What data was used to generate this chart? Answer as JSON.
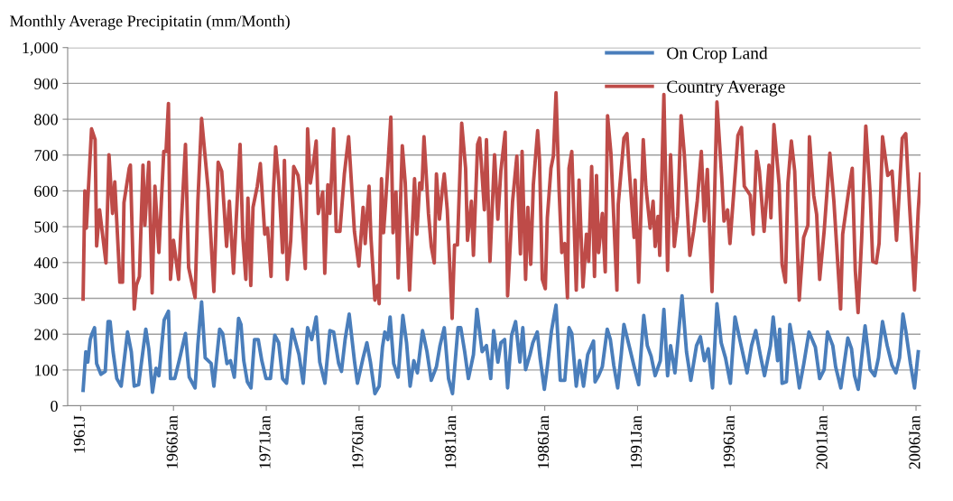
{
  "chart_data": {
    "type": "line",
    "ylabel": "Monthly Average Precipitatin (mm/Month)",
    "xlim": [
      "1960-04-20",
      "2006-04-01"
    ],
    "xticks": [
      {
        "value": "1961-01-01",
        "label": "1961J"
      },
      {
        "value": "1966-01-01",
        "label": "1966Jan"
      },
      {
        "value": "1971-01-01",
        "label": "1971Jan"
      },
      {
        "value": "1976-01-01",
        "label": "1976Jan"
      },
      {
        "value": "1981-01-01",
        "label": "1981Jan"
      },
      {
        "value": "1986-01-01",
        "label": "1986Jan"
      },
      {
        "value": "1991-01-01",
        "label": "1991Jan"
      },
      {
        "value": "1996-01-01",
        "label": "1996Jan"
      },
      {
        "value": "2001-01-01",
        "label": "2001Jan"
      },
      {
        "value": "2006-01-01",
        "label": "2006Jan"
      }
    ],
    "ylim": [
      0,
      1000
    ],
    "yticks": [
      0,
      100,
      200,
      300,
      400,
      500,
      600,
      700,
      800,
      900,
      {
        "value": 1000,
        "label": "1,000"
      }
    ],
    "grid": "y",
    "legend": "top right",
    "marker": "none",
    "line_style": "solid",
    "series": [
      {
        "name": "On Crop Land",
        "color": "#4a7ebb",
        "x": [
          "1961-02-18",
          "1961-04-12",
          "1961-05-21",
          "1961-07-08",
          "1961-08-14",
          "1961-10-01",
          "1961-11-11",
          "1962-02-03",
          "1962-04-30",
          "1962-06-24",
          "1962-08-03",
          "1962-10-01",
          "1962-12-13",
          "1963-03-09",
          "1963-07-12",
          "1963-09-24",
          "1963-11-21",
          "1964-02-14",
          "1964-07-05",
          "1964-09-02",
          "1964-11-14",
          "1965-01-23",
          "1965-03-20",
          "1965-07-01",
          "1965-09-24",
          "1965-11-03",
          "1966-01-26",
          "1966-04-23",
          "1966-08-25",
          "1966-11-07",
          "1967-03-02",
          "1967-04-26",
          "1967-07-08",
          "1967-09-17",
          "1968-01-12",
          "1968-03-06",
          "1968-06-27",
          "1968-08-25",
          "1968-11-18",
          "1969-01-26",
          "1969-04-12",
          "1969-07-05",
          "1969-08-21",
          "1969-10-15",
          "1969-12-24",
          "1970-03-06",
          "1970-05-14",
          "1970-07-26",
          "1970-10-05",
          "1970-12-27",
          "1971-03-24",
          "1971-06-17",
          "1971-09-02",
          "1971-11-18",
          "1972-02-03",
          "1972-05-25",
          "1972-10-05",
          "1972-12-27",
          "1973-03-24",
          "1973-06-13",
          "1973-09-09",
          "1973-11-18",
          "1974-02-28",
          "1974-06-06",
          "1974-08-18",
          "1974-11-25",
          "1975-01-19",
          "1975-04-01",
          "1975-06-20",
          "1975-10-01",
          "1975-11-29",
          "1976-03-20",
          "1976-06-02",
          "1976-08-11",
          "1976-11-07",
          "1977-01-30",
          "1977-04-05",
          "1977-05-21",
          "1977-07-19",
          "1977-09-02",
          "1977-11-11",
          "1978-02-07",
          "1978-05-11",
          "1978-07-23",
          "1978-10-01",
          "1978-12-13",
          "1979-02-21",
          "1979-06-02",
          "1979-08-29",
          "1979-11-21",
          "1980-03-02",
          "1980-05-11",
          "1980-08-03",
          "1980-10-26",
          "1981-01-12",
          "1981-04-30",
          "1981-06-24",
          "1981-09-09",
          "1981-11-21",
          "1982-02-28",
          "1982-05-07",
          "1982-08-18",
          "1982-11-11",
          "1983-02-03",
          "1983-04-01",
          "1983-06-24",
          "1983-08-21",
          "1983-11-03",
          "1984-01-01",
          "1984-03-20",
          "1984-06-06",
          "1984-08-29",
          "1984-10-26",
          "1984-12-20",
          "1985-03-17",
          "1985-05-11",
          "1985-08-07",
          "1985-10-01",
          "1985-12-24",
          "1986-02-21",
          "1986-05-14",
          "1986-08-11",
          "1986-11-03",
          "1987-01-30",
          "1987-04-23",
          "1987-06-17",
          "1987-09-13",
          "1987-11-18",
          "1988-02-03",
          "1988-04-26",
          "1988-08-18",
          "1988-09-17",
          "1988-11-25",
          "1989-02-07",
          "1989-05-14",
          "1989-07-15",
          "1989-09-20",
          "1989-12-06",
          "1990-02-14",
          "1990-04-08",
          "1990-08-03",
          "1990-10-26",
          "1991-01-23",
          "1991-05-03",
          "1991-07-12",
          "1991-09-24",
          "1991-12-13",
          "1992-03-24",
          "1992-06-02",
          "1992-08-14",
          "1992-10-12",
          "1993-01-05",
          "1993-05-25",
          "1993-08-21",
          "1993-11-14",
          "1994-03-06",
          "1994-05-21",
          "1994-08-07",
          "1994-10-23",
          "1995-01-15",
          "1995-04-12",
          "1995-07-05",
          "1995-09-27",
          "1996-01-01",
          "1996-04-01",
          "1996-07-05",
          "1996-11-25",
          "1997-02-21",
          "1997-05-14",
          "1997-08-11",
          "1997-11-03",
          "1998-02-28",
          "1998-04-23",
          "1998-07-19",
          "1998-08-29",
          "1998-10-15",
          "1999-01-08",
          "1999-03-17",
          "1999-05-29",
          "1999-09-20",
          "1999-12-17",
          "2000-03-27",
          "2000-07-30",
          "2000-10-23",
          "2001-01-19",
          "2001-03-27",
          "2001-07-08",
          "2001-09-02",
          "2001-12-13",
          "2002-04-30",
          "2002-07-12",
          "2002-09-09",
          "2002-11-21",
          "2003-04-05",
          "2003-07-15",
          "2003-10-12",
          "2003-12-24",
          "2004-03-13",
          "2004-06-13",
          "2004-09-17",
          "2004-12-02",
          "2005-02-11",
          "2005-04-19",
          "2005-06-13",
          "2005-09-13",
          "2005-12-02",
          "2006-02-14"
        ],
        "values": [
          43,
          151,
          122,
          185,
          202,
          218,
          118,
          88,
          96,
          235,
          235,
          151,
          76,
          55,
          206,
          151,
          55,
          59,
          214,
          159,
          38,
          105,
          84,
          239,
          264,
          76,
          76,
          126,
          202,
          80,
          50,
          172,
          290,
          134,
          118,
          55,
          214,
          202,
          118,
          126,
          80,
          244,
          227,
          126,
          67,
          50,
          185,
          185,
          126,
          76,
          76,
          197,
          176,
          76,
          63,
          214,
          143,
          63,
          218,
          185,
          248,
          122,
          63,
          210,
          206,
          118,
          96,
          185,
          256,
          126,
          63,
          134,
          176,
          122,
          34,
          55,
          164,
          206,
          185,
          248,
          118,
          80,
          252,
          176,
          55,
          126,
          92,
          210,
          151,
          71,
          109,
          168,
          218,
          76,
          34,
          218,
          218,
          151,
          76,
          143,
          269,
          151,
          168,
          76,
          210,
          122,
          176,
          185,
          50,
          197,
          235,
          122,
          218,
          101,
          143,
          176,
          206,
          134,
          46,
          109,
          210,
          281,
          71,
          71,
          218,
          202,
          55,
          126,
          55,
          143,
          181,
          67,
          84,
          109,
          214,
          185,
          113,
          50,
          143,
          227,
          159,
          109,
          59,
          252,
          168,
          139,
          84,
          126,
          269,
          84,
          168,
          92,
          307,
          151,
          71,
          168,
          193,
          126,
          159,
          50,
          285,
          176,
          134,
          63,
          248,
          185,
          92,
          168,
          210,
          143,
          84,
          168,
          248,
          126,
          214,
          63,
          67,
          227,
          168,
          50,
          118,
          206,
          164,
          76,
          101,
          206,
          168,
          109,
          50,
          189,
          159,
          84,
          46,
          223,
          101,
          84,
          134,
          235,
          168,
          113,
          92,
          134,
          256,
          210,
          118,
          50,
          151
        ]
      },
      {
        "name": "Country Average",
        "color": "#be4b48",
        "x": [
          "1961-02-18",
          "1961-03-24",
          "1961-04-23",
          "1961-08-03",
          "1961-10-12",
          "1961-11-11",
          "1962-01-08",
          "1962-05-14",
          "1962-07-12",
          "1962-09-20",
          "1962-11-03",
          "1963-02-11",
          "1963-04-05",
          "1963-05-03",
          "1963-08-14",
          "1963-09-06",
          "1963-11-21",
          "1964-01-01",
          "1964-03-02",
          "1964-05-11",
          "1964-06-17",
          "1964-09-02",
          "1964-11-07",
          "1965-01-01",
          "1965-03-20",
          "1965-06-24",
          "1965-08-07",
          "1965-09-24",
          "1965-11-03",
          "1966-01-01",
          "1966-04-12",
          "1966-05-21",
          "1966-08-25",
          "1966-10-26",
          "1967-03-02",
          "1967-04-26",
          "1967-07-08",
          "1967-11-14",
          "1968-03-06",
          "1968-05-29",
          "1968-08-07",
          "1968-11-11",
          "1969-01-05",
          "1969-03-27",
          "1969-08-03",
          "1969-09-27",
          "1969-11-25",
          "1970-01-05",
          "1970-03-02",
          "1970-04-15",
          "1970-07-08",
          "1970-09-06",
          "1970-12-02",
          "1971-01-26",
          "1971-04-05",
          "1971-05-18",
          "1971-07-05",
          "1971-09-02",
          "1971-11-18",
          "1971-12-24",
          "1972-02-18",
          "1972-04-26",
          "1972-06-24",
          "1972-09-17",
          "1972-10-26",
          "1973-02-07",
          "1973-03-24",
          "1973-05-18",
          "1973-07-08",
          "1973-09-09",
          "1973-10-19",
          "1974-01-15",
          "1974-02-25",
          "1974-04-26",
          "1974-06-06",
          "1974-08-18",
          "1974-10-08",
          "1974-12-20",
          "1975-03-17",
          "1975-06-09",
          "1975-10-01",
          "1975-12-27",
          "1976-03-20",
          "1976-04-30",
          "1976-07-15",
          "1976-08-21",
          "1976-11-07",
          "1977-01-01",
          "1977-01-30",
          "1977-03-17",
          "1977-04-26",
          "1977-06-06",
          "1977-09-17",
          "1977-10-30",
          "1977-12-27",
          "1978-02-07",
          "1978-04-30",
          "1978-06-27",
          "1978-09-20",
          "1978-12-27",
          "1979-02-11",
          "1979-04-08",
          "1979-05-21",
          "1979-07-01",
          "1979-09-27",
          "1979-11-21",
          "1980-01-19",
          "1980-03-02",
          "1980-04-30",
          "1980-06-27",
          "1980-08-03",
          "1980-10-01",
          "1981-01-05",
          "1981-02-21",
          "1981-04-19",
          "1981-07-12",
          "1981-09-27",
          "1981-11-03",
          "1982-01-19",
          "1982-02-28",
          "1982-05-21",
          "1982-07-01",
          "1982-10-01",
          "1982-11-11",
          "1983-01-19",
          "1983-04-19",
          "1983-06-24",
          "1983-08-21",
          "1983-11-14",
          "1984-01-01",
          "1984-04-08",
          "1984-07-01",
          "1984-09-09",
          "1984-10-12",
          "1984-12-20",
          "1985-02-03",
          "1985-04-01",
          "1985-05-21",
          "1985-08-14",
          "1985-09-20",
          "1985-11-14",
          "1986-01-12",
          "1986-02-21",
          "1986-05-03",
          "1986-06-20",
          "1986-08-11",
          "1986-10-08",
          "1986-12-02",
          "1987-01-30",
          "1987-03-24",
          "1987-04-23",
          "1987-06-17",
          "1987-09-13",
          "1987-11-07",
          "1988-01-23",
          "1988-04-01",
          "1988-05-14",
          "1988-07-12",
          "1988-09-06",
          "1988-10-15",
          "1988-11-25",
          "1989-02-07",
          "1989-04-05",
          "1989-05-21",
          "1989-07-26",
          "1989-11-21",
          "1989-12-17",
          "1990-04-08",
          "1990-06-06",
          "1990-07-23",
          "1990-10-26",
          "1990-11-14",
          "1991-01-23",
          "1991-04-23",
          "1991-06-13",
          "1991-09-06",
          "1991-11-03",
          "1991-12-13",
          "1992-02-07",
          "1992-03-13",
          "1992-06-02",
          "1992-08-14",
          "1992-10-12",
          "1992-12-24",
          "1993-02-28",
          "1993-05-07",
          "1993-07-08",
          "1993-10-26",
          "1994-01-08",
          "1994-03-20",
          "1994-06-09",
          "1994-08-07",
          "1994-10-05",
          "1995-01-05",
          "1995-02-14",
          "1995-04-12",
          "1995-07-15",
          "1995-08-29",
          "1995-11-07",
          "1995-12-24",
          "1996-04-15",
          "1996-05-29",
          "1996-08-07",
          "1996-10-01",
          "1997-01-26",
          "1997-03-24",
          "1997-05-29",
          "1997-07-26",
          "1997-10-26",
          "1998-01-30",
          "1998-03-09",
          "1998-05-07",
          "1998-08-18",
          "1998-10-15",
          "1998-12-20",
          "1999-02-07",
          "1999-04-15",
          "1999-06-20",
          "1999-09-17",
          "1999-12-13",
          "2000-03-06",
          "2000-04-05",
          "2000-06-27",
          "2000-08-25",
          "2000-10-23",
          "2001-01-19",
          "2001-05-11",
          "2001-07-30",
          "2001-12-09",
          "2002-01-19",
          "2002-05-14",
          "2002-07-26",
          "2002-09-24",
          "2002-11-18",
          "2003-01-26",
          "2003-04-19",
          "2003-07-15",
          "2003-09-02",
          "2003-11-11",
          "2004-01-05",
          "2004-03-13",
          "2004-06-24",
          "2004-09-17",
          "2004-12-13",
          "2005-04-05",
          "2005-06-13",
          "2005-08-25",
          "2005-12-02",
          "2006-02-14",
          "2006-04-01"
        ],
        "values": [
          298,
          600,
          496,
          773,
          743,
          446,
          547,
          399,
          701,
          537,
          625,
          345,
          345,
          567,
          663,
          672,
          270,
          336,
          361,
          672,
          504,
          680,
          315,
          613,
          428,
          710,
          710,
          844,
          353,
          462,
          353,
          474,
          730,
          386,
          302,
          571,
          802,
          605,
          319,
          680,
          655,
          445,
          571,
          370,
          730,
          470,
          353,
          580,
          336,
          554,
          613,
          676,
          479,
          496,
          361,
          588,
          723,
          630,
          428,
          685,
          353,
          462,
          668,
          643,
          597,
          383,
          773,
          622,
          668,
          739,
          537,
          597,
          370,
          617,
          537,
          773,
          487,
          487,
          647,
          751,
          487,
          390,
          554,
          453,
          613,
          470,
          295,
          336,
          285,
          634,
          483,
          567,
          806,
          483,
          597,
          357,
          726,
          622,
          323,
          634,
          479,
          622,
          605,
          751,
          537,
          445,
          399,
          647,
          521,
          605,
          647,
          547,
          244,
          449,
          449,
          789,
          663,
          462,
          571,
          420,
          730,
          747,
          547,
          743,
          403,
          701,
          521,
          655,
          764,
          307,
          571,
          697,
          424,
          710,
          353,
          554,
          395,
          617,
          768,
          688,
          353,
          327,
          525,
          663,
          697,
          874,
          609,
          428,
          453,
          302,
          663,
          710,
          323,
          630,
          332,
          479,
          403,
          668,
          361,
          643,
          428,
          537,
          374,
          810,
          705,
          323,
          562,
          747,
          760,
          655,
          470,
          630,
          345,
          743,
          613,
          496,
          571,
          445,
          529,
          420,
          869,
          378,
          701,
          445,
          529,
          810,
          705,
          420,
          487,
          571,
          710,
          516,
          660,
          319,
          529,
          848,
          638,
          516,
          547,
          453,
          668,
          755,
          777,
          613,
          588,
          479,
          710,
          655,
          487,
          672,
          525,
          785,
          617,
          395,
          345,
          622,
          739,
          655,
          295,
          470,
          504,
          751,
          588,
          534,
          353,
          487,
          705,
          571,
          270,
          479,
          597,
          663,
          378,
          260,
          462,
          781,
          588,
          403,
          399,
          453,
          751,
          643,
          655,
          462,
          747,
          760,
          562,
          323,
          547,
          647
        ]
      }
    ]
  }
}
